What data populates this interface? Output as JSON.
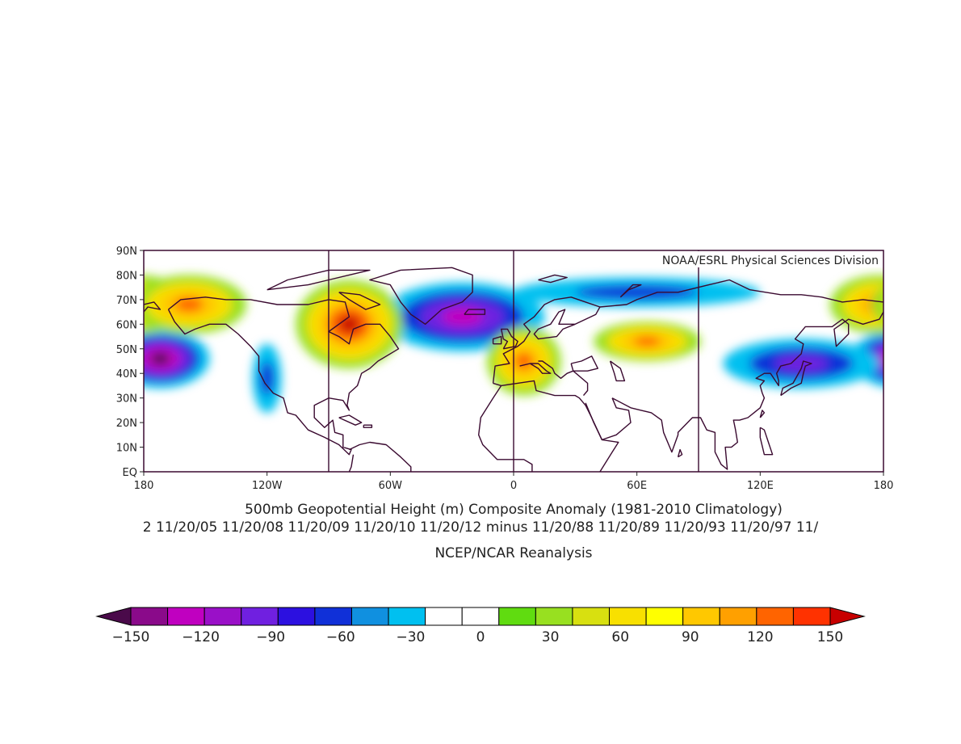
{
  "map": {
    "credit": "NOAA/ESRL Physical Sciences Division",
    "lat_labels": [
      "90N",
      "80N",
      "70N",
      "60N",
      "50N",
      "40N",
      "30N",
      "20N",
      "10N",
      "EQ"
    ],
    "lon_labels": [
      "180",
      "120W",
      "60W",
      "0",
      "60E",
      "120E",
      "180"
    ],
    "title_line1": "500mb Geopotential Height (m) Composite Anomaly (1981-2010 Climatology)",
    "title_line2": "2 11/20/05 11/20/08 11/20/09 11/20/10 11/20/12 minus 11/20/88 11/20/89 11/20/93 11/20/97 11/",
    "title_line3": "NCEP/NCAR Reanalysis",
    "projection_extent": {
      "lon_min": -180,
      "lon_max": 180,
      "lat_min": 0,
      "lat_max": 90
    }
  },
  "colorbar": {
    "labels": [
      "-150",
      "-120",
      "-90",
      "-60",
      "-30",
      "0",
      "30",
      "60",
      "90",
      "120",
      "150"
    ],
    "colors": [
      "#4a0a4a",
      "#8a0a8a",
      "#c000c0",
      "#9a10c8",
      "#7020e0",
      "#2c10e0",
      "#1030d8",
      "#1090e0",
      "#00c0f0",
      "#ffffff",
      "#ffffff",
      "#60dc10",
      "#98e020",
      "#d8e010",
      "#f8e000",
      "#ffff00",
      "#ffc800",
      "#ffa000",
      "#ff6400",
      "#ff3200",
      "#c80000"
    ]
  },
  "anomalies": [
    {
      "label": "neg-north-pacific",
      "lon": -172,
      "lat": 46,
      "rx": 24,
      "ry": 12,
      "value": -150
    },
    {
      "label": "neg-greenland",
      "lon": -25,
      "lat": 63,
      "rx": 40,
      "ry": 14,
      "value": -120
    },
    {
      "label": "neg-asia",
      "lon": 140,
      "lat": 44,
      "rx": 38,
      "ry": 10,
      "value": -90
    },
    {
      "label": "neg-arctic-siberia",
      "lon": 60,
      "lat": 73,
      "rx": 60,
      "ry": 6,
      "value": -60
    },
    {
      "label": "neg-west-coast",
      "lon": -120,
      "lat": 38,
      "rx": 7,
      "ry": 14,
      "value": -45
    },
    {
      "label": "pos-hudson",
      "lon": -80,
      "lat": 60,
      "rx": 26,
      "ry": 18,
      "value": 150
    },
    {
      "label": "pos-europe",
      "lon": 5,
      "lat": 45,
      "rx": 18,
      "ry": 14,
      "value": 120
    },
    {
      "label": "pos-central-asia",
      "lon": 65,
      "lat": 53,
      "rx": 26,
      "ry": 8,
      "value": 120
    },
    {
      "label": "pos-bering",
      "lon": 178,
      "lat": 68,
      "rx": 24,
      "ry": 12,
      "value": 120
    },
    {
      "label": "pos-alaska",
      "lon": -158,
      "lat": 68,
      "rx": 28,
      "ry": 12,
      "value": 120
    }
  ]
}
